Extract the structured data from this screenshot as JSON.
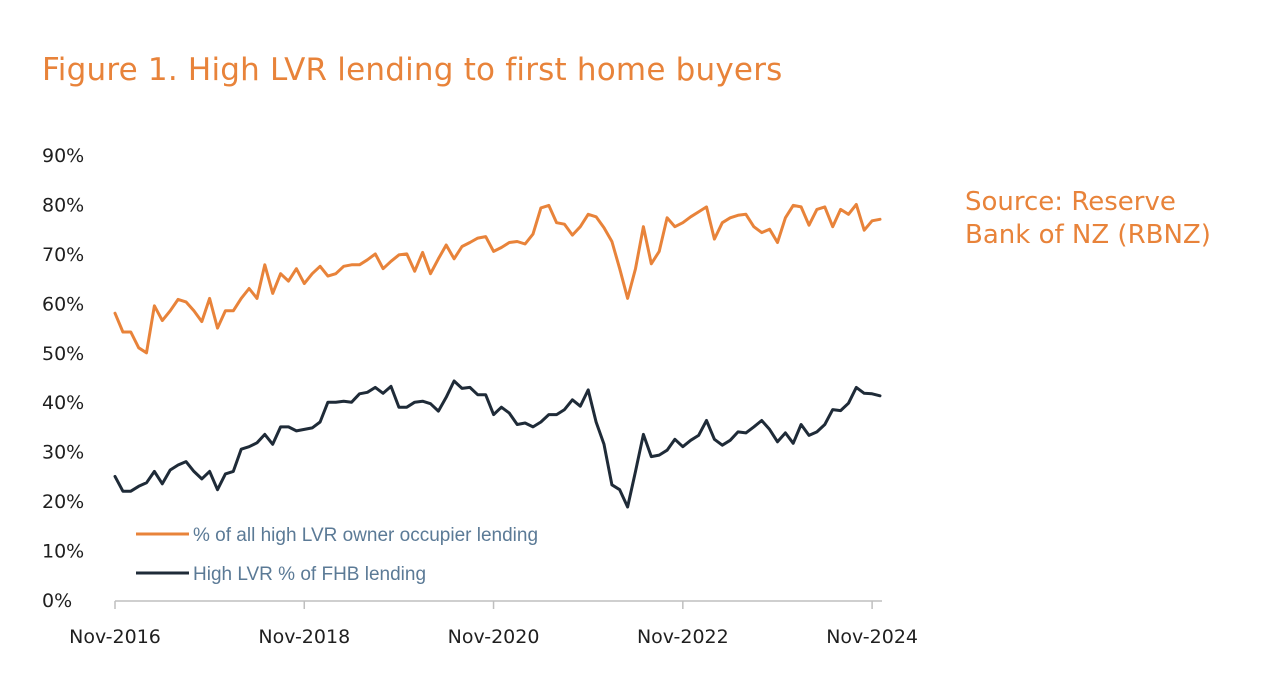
{
  "colors": {
    "orange": "#E8833A",
    "navy": "#1F2B38",
    "legend_text": "#5B7A96",
    "axis": "#BFBFBF"
  },
  "header": {
    "title": "Figure 1. High LVR lending to first home buyers"
  },
  "source_note": {
    "line1": "Source: Reserve",
    "line2": "Bank of NZ (RBNZ)"
  },
  "chart_data": {
    "type": "line",
    "title": "Figure 1. High LVR lending to first home buyers",
    "xlabel": "",
    "ylabel": "",
    "x_start": "Nov-2016",
    "x_end": "Dec-2024",
    "frequency": "monthly",
    "ylim": [
      0,
      90
    ],
    "y_tick_labels": [
      "0%",
      "10%",
      "20%",
      "30%",
      "40%",
      "50%",
      "60%",
      "70%",
      "80%",
      "90%"
    ],
    "x_tick_labels": [
      "Nov-2016",
      "Nov-2018",
      "Nov-2020",
      "Nov-2022",
      "Nov-2024"
    ],
    "grid": false,
    "legend_position": "bottom-left",
    "series": [
      {
        "name": "% of all high LVR owner occupier lending",
        "color": "#E8833A",
        "values": [
          58.0,
          54.2,
          54.2,
          51.0,
          50.0,
          59.5,
          56.5,
          58.5,
          60.8,
          60.3,
          58.5,
          56.3,
          61.0,
          55.0,
          58.5,
          58.5,
          61.0,
          63.0,
          61.0,
          67.8,
          62.0,
          66.0,
          64.5,
          67.0,
          64.0,
          66.0,
          67.5,
          65.5,
          66.0,
          67.5,
          67.8,
          67.8,
          68.8,
          70.0,
          67.0,
          68.5,
          69.8,
          70.0,
          66.5,
          70.3,
          66.0,
          69.0,
          71.8,
          69.0,
          71.5,
          72.3,
          73.2,
          73.5,
          70.5,
          71.3,
          72.3,
          72.5,
          72.0,
          74.0,
          79.3,
          79.8,
          76.3,
          76.0,
          73.8,
          75.5,
          78.0,
          77.5,
          75.3,
          72.5,
          67.0,
          61.0,
          67.0,
          75.5,
          68.0,
          70.5,
          77.3,
          75.5,
          76.3,
          77.5,
          78.5,
          79.5,
          73.0,
          76.3,
          77.3,
          77.8,
          78.0,
          75.5,
          74.3,
          75.0,
          72.3,
          77.3,
          79.8,
          79.5,
          75.8,
          79.0,
          79.5,
          75.5,
          79.0,
          78.0,
          80.0,
          74.8,
          76.7,
          77.0
        ]
      },
      {
        "name": "High LVR % of FHB lending",
        "color": "#1F2B38",
        "values": [
          25.0,
          22.0,
          22.0,
          23.0,
          23.7,
          26.0,
          23.5,
          26.3,
          27.3,
          28.0,
          26.0,
          24.5,
          26.0,
          22.3,
          25.5,
          26.0,
          30.5,
          31.0,
          31.8,
          33.5,
          31.5,
          35.0,
          35.0,
          34.2,
          34.5,
          34.8,
          36.0,
          40.0,
          40.0,
          40.2,
          40.0,
          41.7,
          42.0,
          43.0,
          41.8,
          43.2,
          39.0,
          39.0,
          40.0,
          40.2,
          39.7,
          38.2,
          41.0,
          44.3,
          42.8,
          43.0,
          41.5,
          41.5,
          37.5,
          39.0,
          37.8,
          35.5,
          35.8,
          35.0,
          36.0,
          37.5,
          37.5,
          38.5,
          40.5,
          39.2,
          42.5,
          36.0,
          31.5,
          23.3,
          22.3,
          18.8,
          26.0,
          33.5,
          29.0,
          29.3,
          30.3,
          32.5,
          31.0,
          32.3,
          33.3,
          36.3,
          32.5,
          31.3,
          32.3,
          34.0,
          33.8,
          35.0,
          36.3,
          34.5,
          32.0,
          33.8,
          31.7,
          35.5,
          33.3,
          34.0,
          35.5,
          38.5,
          38.3,
          39.8,
          43.0,
          41.8,
          41.7,
          41.3
        ]
      }
    ]
  }
}
